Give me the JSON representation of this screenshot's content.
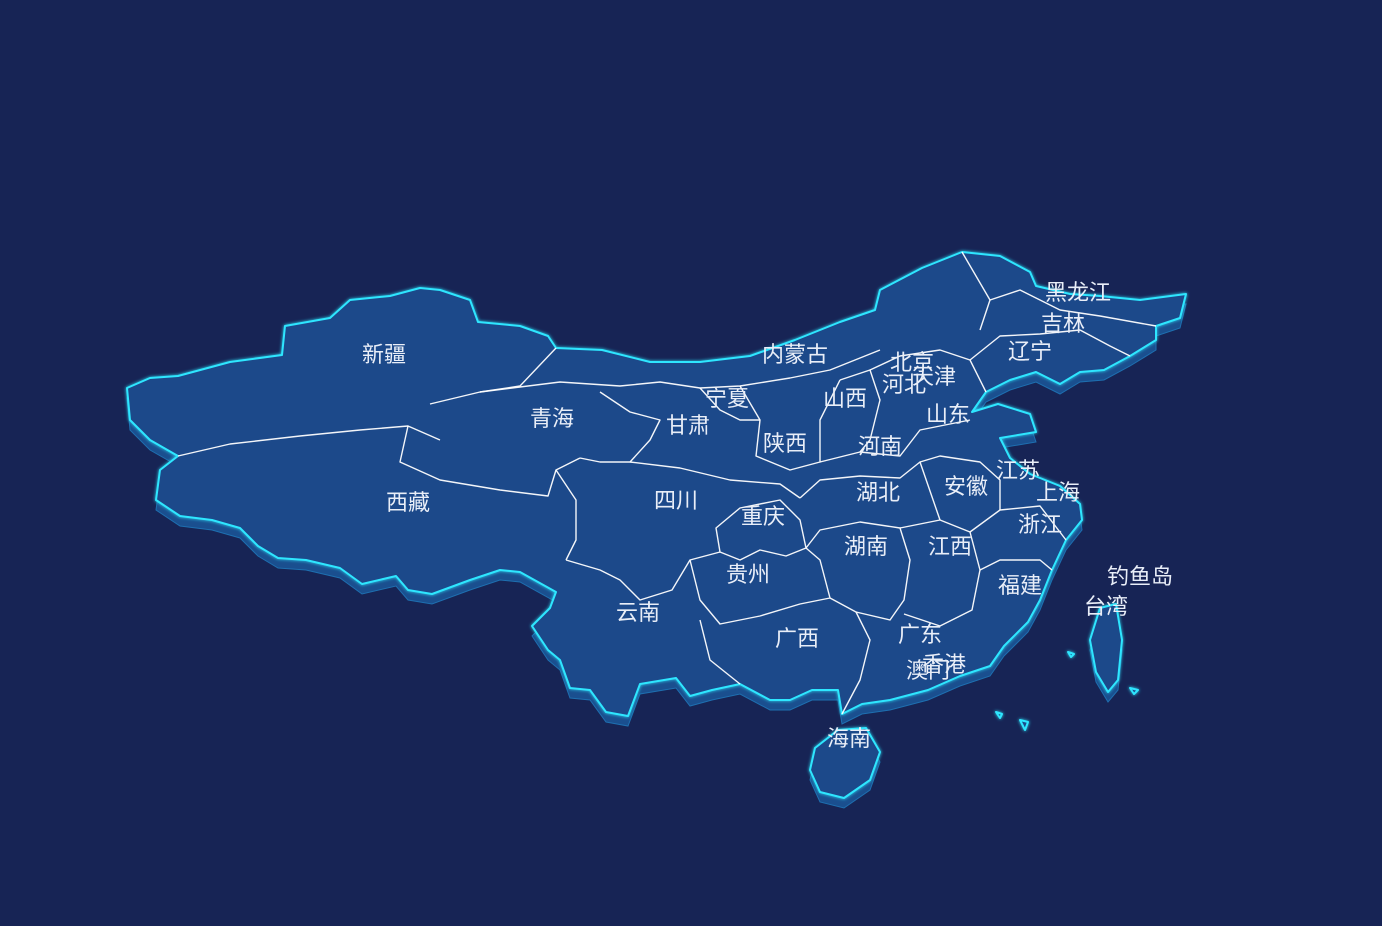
{
  "map": {
    "colors": {
      "background": "#172455",
      "area_fill": "#1b4a8a",
      "area_side": "#1a4f8f",
      "outline_glow": "#2fe6ff",
      "province_border": "#ffffff",
      "label_color": "#e9eef8"
    },
    "labels": {
      "xinjiang": "新疆",
      "xizang": "西藏",
      "qinghai": "青海",
      "gansu": "甘肃",
      "ningxia": "宁夏",
      "neimenggu": "内蒙古",
      "heilongjiang": "黑龙江",
      "jilin": "吉林",
      "liaoning": "辽宁",
      "beijing": "北京",
      "tianjin": "天津",
      "hebei": "河北",
      "shanxi": "山西",
      "shandong": "山东",
      "shaanxi": "陕西",
      "henan": "河南",
      "jiangsu": "江苏",
      "anhui": "安徽",
      "shanghai": "上海",
      "hubei": "湖北",
      "sichuan": "四川",
      "chongqing": "重庆",
      "zhejiang": "浙江",
      "hunan": "湖南",
      "jiangxi": "江西",
      "guizhou": "贵州",
      "fujian": "福建",
      "yunnan": "云南",
      "guangxi": "广西",
      "guangdong": "广东",
      "xianggang": "香港",
      "aomen": "澳门",
      "taiwan": "台湾",
      "diaoyudao": "钓鱼岛",
      "hainan": "海南"
    }
  }
}
